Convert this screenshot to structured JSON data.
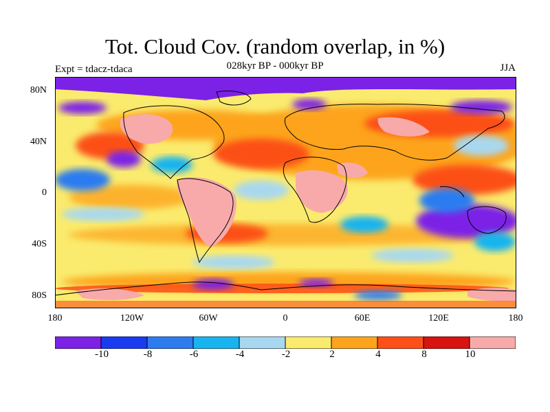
{
  "title": "Tot. Cloud Cov. (random overlap, in %)",
  "subtitle": "028kyr BP - 000kyr BP",
  "left_label": "Expt = tdacz-tdaca",
  "right_label": "JJA",
  "axes": {
    "lat_ticks": [
      "80N",
      "40N",
      "0",
      "40S",
      "80S"
    ],
    "lon_ticks": [
      "180",
      "120W",
      "60W",
      "0",
      "60E",
      "120E",
      "180"
    ]
  },
  "colorbar": {
    "colors": [
      "#7B22E6",
      "#1A3CF0",
      "#2C7CF0",
      "#18B4F0",
      "#A8D8F0",
      "#FAEB6E",
      "#FDA41C",
      "#FC5018",
      "#D81410",
      "#F8AAAA"
    ],
    "labels": [
      "-10",
      "-8",
      "-6",
      "-4",
      "-2",
      "2",
      "4",
      "8",
      "10"
    ]
  }
}
